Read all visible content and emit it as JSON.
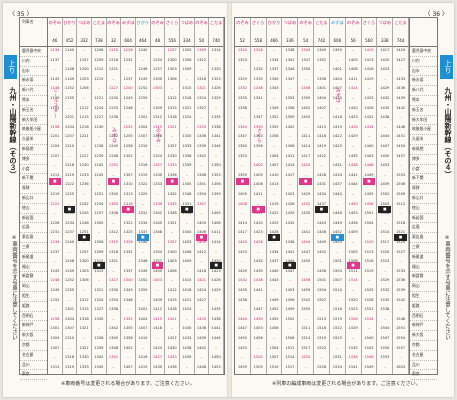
{
  "left_page": {
    "page_number": "〈 35 〉",
    "direction_tab": "上り",
    "side_title": "九州・山陽新幹線（その３）",
    "side_note": "※車両番号を示す号車に注意してください",
    "footnote": "※車両番号は変更される場合があります。ご注意ください。",
    "station_header": "列車名",
    "stations": [
      "鹿児島中央",
      "川内",
      "出水",
      "新水俣",
      "新八代",
      "熊本",
      "新玉名",
      "新大牟田",
      "筑後船小屋",
      "久留米",
      "新鳥栖",
      "博多",
      "小倉",
      "新下関",
      "厚狭",
      "新山口",
      "徳山",
      "新岩国",
      "広島",
      "東広島",
      "三原",
      "新尾道",
      "福山",
      "新倉敷",
      "岡山",
      "相生",
      "姫路",
      "西明石",
      "新神戸",
      "新大阪",
      "京都",
      "名古屋",
      "品川",
      "東京"
    ],
    "columns": [
      {
        "name": "のぞみ",
        "number": "46",
        "time": "1134",
        "vtext": "レールスター",
        "color": "pink"
      },
      {
        "name": "ひかり",
        "number": "452",
        "time": "1140",
        "vtext": "",
        "color": "black"
      },
      {
        "name": "つばめ",
        "number": "332",
        "time": "1154",
        "vtext": "",
        "color": "black"
      },
      {
        "name": "こだま",
        "number": "738",
        "time": "1206",
        "vtext": "",
        "color": "black"
      },
      {
        "name": "のぞみ",
        "number": "32",
        "time": "1215",
        "vtext": "みずほ",
        "color": "pink"
      },
      {
        "name": "みずほ",
        "number": "604",
        "time": "1228",
        "vtext": "",
        "color": "pink"
      },
      {
        "name": "ひかり",
        "number": "464",
        "time": "1240",
        "vtext": "",
        "color": "blue"
      },
      {
        "name": "のぞみ",
        "number": "48",
        "time": "1251",
        "vtext": "のぞみ",
        "color": "pink"
      },
      {
        "name": "さくら",
        "number": "556",
        "time": "1257",
        "vtext": "",
        "color": "pink"
      },
      {
        "name": "つばめ",
        "number": "334",
        "time": "1303",
        "vtext": "",
        "color": "black"
      },
      {
        "name": "のぞみ",
        "number": "50",
        "time": "1309",
        "vtext": "",
        "color": "pink"
      },
      {
        "name": "こだま",
        "number": "740",
        "time": "1314",
        "vtext": "",
        "color": "black"
      }
    ]
  },
  "right_page": {
    "page_number": "〈 36 〉",
    "direction_tab": "上り",
    "side_title": "九州・山陽新幹線（その４）",
    "side_note": "※車両番号を示す号車に注意してください",
    "footnote": "※列車の編成車両は変更される場合があります。ご注意ください。",
    "stations": [
      "鹿児島中央",
      "川内",
      "出水",
      "新水俣",
      "新八代",
      "熊本",
      "新玉名",
      "新大牟田",
      "筑後船小屋",
      "久留米",
      "新鳥栖",
      "博多",
      "小倉",
      "新下関",
      "厚狭",
      "新山口",
      "徳山",
      "新岩国",
      "広島",
      "東広島",
      "三原",
      "新尾道",
      "福山",
      "新倉敷",
      "岡山",
      "相生",
      "姫路",
      "西明石",
      "新神戸",
      "新大阪",
      "京都",
      "名古屋",
      "品川",
      "東京"
    ],
    "columns": [
      {
        "name": "のぞみ",
        "number": "52",
        "time": "1320",
        "vtext": "",
        "color": "pink"
      },
      {
        "name": "さくら",
        "number": "558",
        "time": "1326",
        "vtext": "さくら",
        "color": "pink"
      },
      {
        "name": "ひかり",
        "number": "466",
        "time": "1331",
        "vtext": "",
        "color": "black"
      },
      {
        "name": "つばめ",
        "number": "336",
        "time": "1338",
        "vtext": "",
        "color": "black"
      },
      {
        "name": "のぞみ",
        "number": "54",
        "time": "1344",
        "vtext": "",
        "color": "pink"
      },
      {
        "name": "こだま",
        "number": "742",
        "time": "1349",
        "vtext": "",
        "color": "black"
      },
      {
        "name": "みずほ",
        "number": "606",
        "time": "1355",
        "vtext": "みずほ",
        "color": "blue"
      },
      {
        "name": "のぞみ",
        "number": "56",
        "time": "1402",
        "vtext": "",
        "color": "pink"
      },
      {
        "name": "さくら",
        "number": "560",
        "time": "1410",
        "vtext": "",
        "color": "pink"
      },
      {
        "name": "つばめ",
        "number": "338",
        "time": "1417",
        "vtext": "",
        "color": "black"
      },
      {
        "name": "こだま",
        "number": "744",
        "time": "1424",
        "vtext": "",
        "color": "black"
      }
    ]
  }
}
